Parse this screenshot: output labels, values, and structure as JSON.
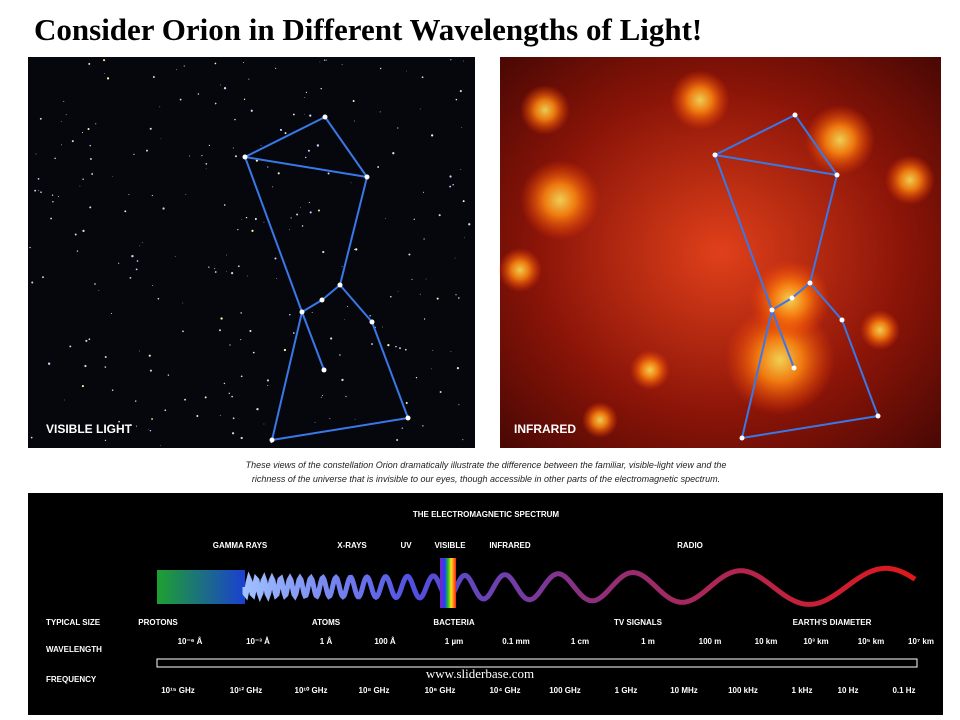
{
  "header": {
    "title": "Consider Orion in Different Wavelengths of Light!"
  },
  "panels": {
    "visible": "VISIBLE LIGHT",
    "infrared": "INFRARED"
  },
  "caption": [
    "These views of the constellation Orion dramatically illustrate the difference between the familiar, visible-light view and the",
    "richness of the universe that is invisible to our eyes, though accessible in other parts of the electromagnetic spectrum."
  ],
  "spectrum": {
    "title": "THE ELECTROMAGNETIC SPECTRUM",
    "bands": [
      "GAMMA RAYS",
      "X-RAYS",
      "UV",
      "VISIBLE",
      "INFRARED",
      "RADIO"
    ],
    "row_labels": [
      "TYPICAL SIZE",
      "WAVELENGTH",
      "FREQUENCY"
    ],
    "sizes": [
      "PROTONS",
      "ATOMS",
      "BACTERIA",
      "TV SIGNALS",
      "EARTH'S DIAMETER"
    ],
    "wavelengths": [
      "10⁻⁶ Å",
      "10⁻³ Å",
      "1 Å",
      "100 Å",
      "1 µm",
      "0.1 mm",
      "1 cm",
      "1 m",
      "100 m",
      "10 km",
      "10³ km",
      "10⁵ km",
      "10⁷ km"
    ],
    "frequencies": [
      "10¹⁵ GHz",
      "10¹² GHz",
      "10¹⁰ GHz",
      "10⁸ GHz",
      "10⁶ GHz",
      "10⁴ GHz",
      "100 GHz",
      "1 GHz",
      "10 MHz",
      "100 kHz",
      "1 kHz",
      "10 Hz",
      "0.1 Hz"
    ]
  },
  "watermark": "www.sliderbase.com"
}
